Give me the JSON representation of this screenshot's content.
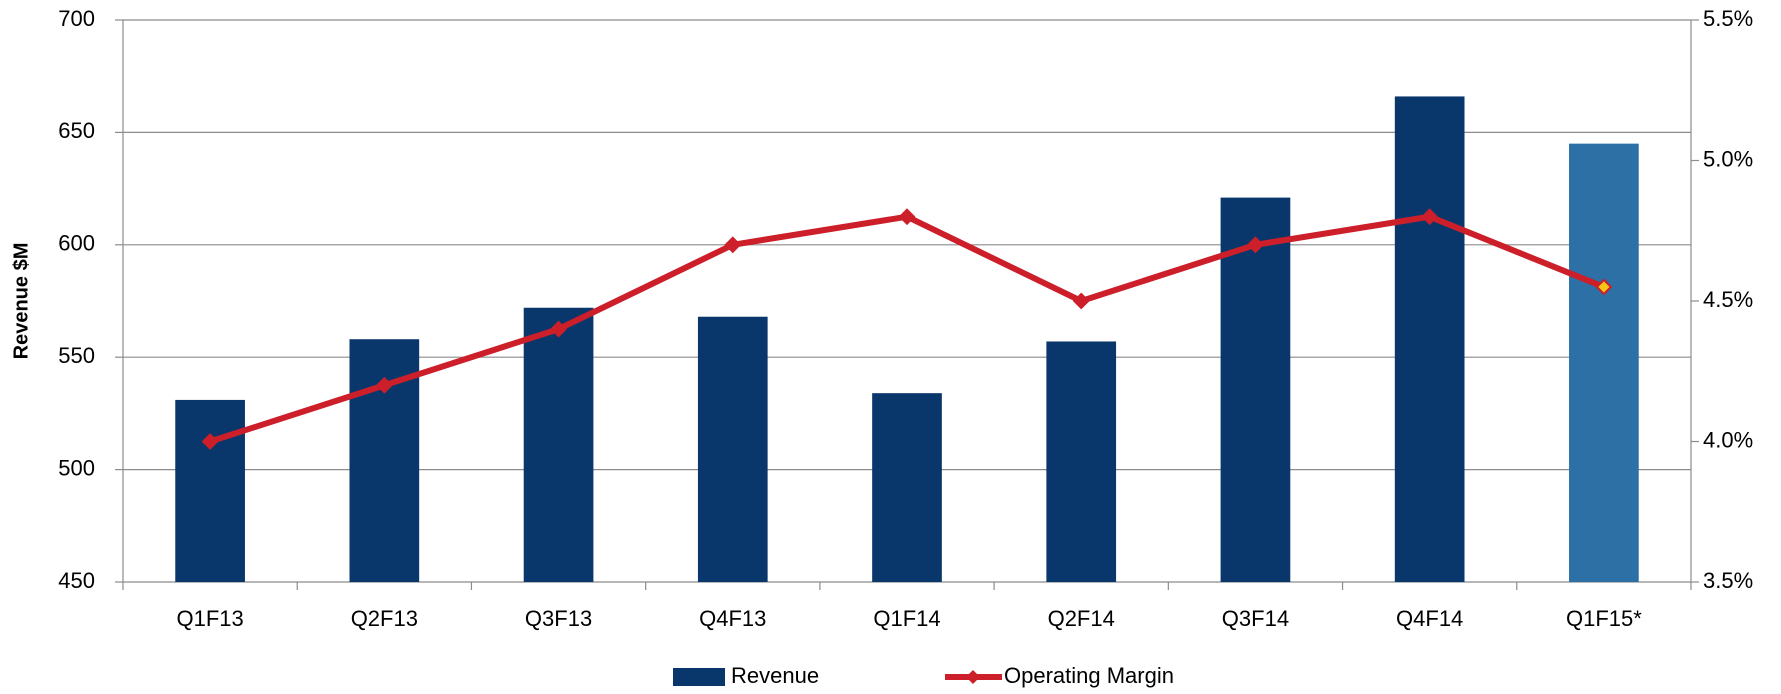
{
  "chart_data": {
    "type": "bar-line",
    "y_label": "Revenue $M",
    "categories": [
      "Q1F13",
      "Q2F13",
      "Q3F13",
      "Q4F13",
      "Q1F14",
      "Q2F14",
      "Q3F14",
      "Q4F14",
      "Q1F15*"
    ],
    "series": [
      {
        "name": "Revenue",
        "type": "bar",
        "color": "#0a376b",
        "colors": [
          "#0a376b",
          "#0a376b",
          "#0a376b",
          "#0a376b",
          "#0a376b",
          "#0a376b",
          "#0a376b",
          "#0a376b",
          "#2c70a6"
        ],
        "values": [
          531,
          558,
          572,
          568,
          534,
          557,
          621,
          666,
          645
        ]
      },
      {
        "name": "Operating Margin",
        "type": "line",
        "axis": "y2",
        "color": "#cc1f2a",
        "marker_colors": [
          "#cc1f2a",
          "#cc1f2a",
          "#cc1f2a",
          "#cc1f2a",
          "#cc1f2a",
          "#cc1f2a",
          "#cc1f2a",
          "#cc1f2a",
          "#f5c518"
        ],
        "values": [
          4.0,
          4.2,
          4.4,
          4.7,
          4.8,
          4.5,
          4.7,
          4.8,
          4.55
        ]
      }
    ],
    "ylim": [
      450,
      700
    ],
    "yticks": [
      450,
      500,
      550,
      600,
      650,
      700
    ],
    "y2lim": [
      3.5,
      5.5
    ],
    "y2ticks": [
      {
        "value": 3.5,
        "label": "3.5%"
      },
      {
        "value": 4.0,
        "label": "4.0%"
      },
      {
        "value": 4.5,
        "label": "4.5%"
      },
      {
        "value": 5.0,
        "label": "5.0%"
      },
      {
        "value": 5.5,
        "label": "5.5%"
      }
    ],
    "grid": true,
    "legend": "bottom"
  }
}
